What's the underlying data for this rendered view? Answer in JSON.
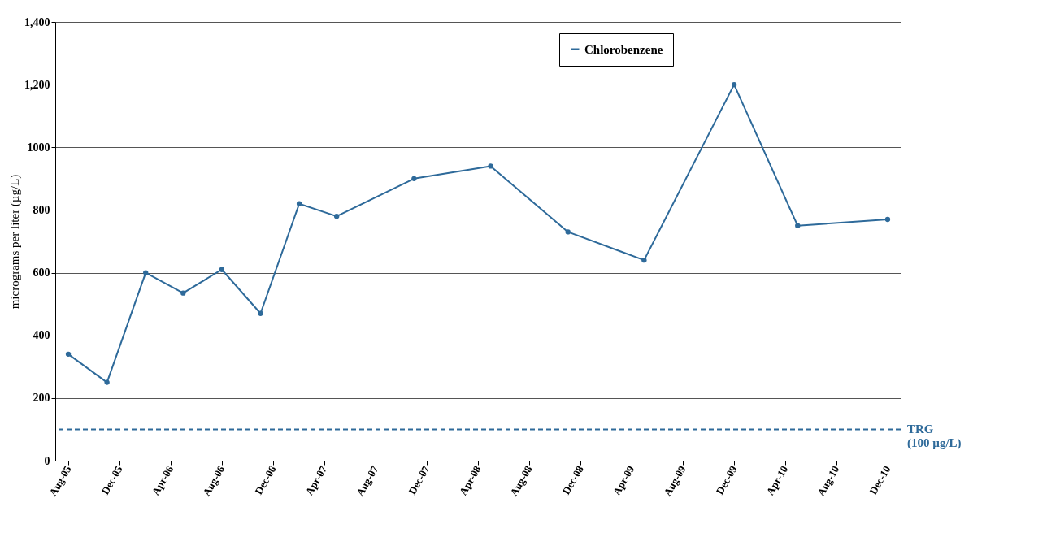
{
  "chart_data": {
    "type": "line",
    "ylabel": "micrograms per liter (µg/L)",
    "x": [
      "2005-08",
      "2005-11",
      "2006-02",
      "2006-05",
      "2006-08",
      "2006-11",
      "2007-02",
      "2007-05",
      "2007-11",
      "2008-05",
      "2008-11",
      "2009-05",
      "2009-12",
      "2010-05",
      "2010-12"
    ],
    "series": [
      {
        "name": "Chlorobenzene",
        "color": "#2e6a9a",
        "values": [
          340,
          250,
          600,
          535,
          610,
          470,
          820,
          780,
          900,
          940,
          730,
          640,
          1200,
          750,
          770
        ]
      }
    ],
    "xlim": [
      "2005-07",
      "2011-01"
    ],
    "xticks": [
      {
        "value": "2005-08",
        "label": "Aug-05"
      },
      {
        "value": "2005-12",
        "label": "Dec-05"
      },
      {
        "value": "2006-04",
        "label": "Apr-06"
      },
      {
        "value": "2006-08",
        "label": "Aug-06"
      },
      {
        "value": "2006-12",
        "label": "Dec-06"
      },
      {
        "value": "2007-04",
        "label": "Apr-07"
      },
      {
        "value": "2007-08",
        "label": "Aug-07"
      },
      {
        "value": "2007-12",
        "label": "Dec-07"
      },
      {
        "value": "2008-04",
        "label": "Apr-08"
      },
      {
        "value": "2008-08",
        "label": "Aug-08"
      },
      {
        "value": "2008-12",
        "label": "Dec-08"
      },
      {
        "value": "2009-04",
        "label": "Apr-09"
      },
      {
        "value": "2009-08",
        "label": "Aug-09"
      },
      {
        "value": "2009-12",
        "label": "Dec-09"
      },
      {
        "value": "2010-04",
        "label": "Apr-10"
      },
      {
        "value": "2010-08",
        "label": "Aug-10"
      },
      {
        "value": "2010-12",
        "label": "Dec-10"
      }
    ],
    "ylim": [
      0,
      1400
    ],
    "yticks": [
      0,
      200,
      400,
      600,
      800,
      1000,
      {
        "value": 1200,
        "label": "1,200"
      },
      {
        "value": 1400,
        "label": "1,400"
      }
    ],
    "ref_lines": [
      {
        "axis": "y",
        "value": 100,
        "label": "TRG\n(100 µg/L)",
        "color": "#2e6a9a",
        "line_style": "dashed"
      }
    ],
    "grid": "y",
    "legend": "top right",
    "marker": "circle",
    "line_style": "solid"
  }
}
